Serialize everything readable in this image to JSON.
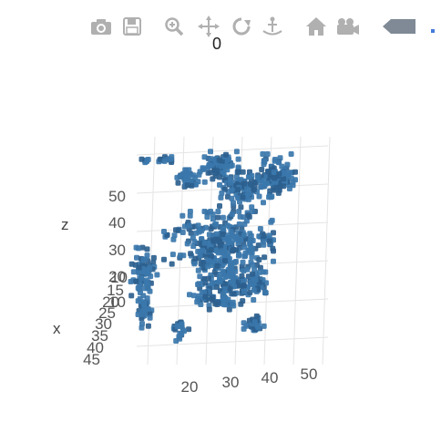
{
  "toolbar": {
    "items": [
      {
        "name": "camera-icon"
      },
      {
        "name": "save-icon"
      },
      {
        "name": "zoom-icon"
      },
      {
        "name": "pan-icon"
      },
      {
        "name": "orbit-rotate-icon"
      },
      {
        "name": "turntable-icon"
      },
      {
        "name": "home-icon"
      },
      {
        "name": "camera-view-icon"
      },
      {
        "name": "hover-compare-icon"
      }
    ]
  },
  "chart_data": {
    "type": "scatter",
    "title": "0",
    "marker_color": "#3b77ab",
    "marker_color_dark": "#2c5f8e",
    "axes": {
      "z": {
        "label": "z",
        "ticks": [
          "10",
          "20",
          "30",
          "40",
          "50"
        ]
      },
      "x": {
        "label": "x",
        "ticks": [
          "10",
          "15",
          "20",
          "25",
          "30",
          "35",
          "40",
          "45"
        ]
      },
      "y": {
        "label": "",
        "ticks": [
          "20",
          "30",
          "40",
          "50"
        ]
      }
    },
    "clusters": [
      {
        "cx": 160,
        "cy": 176,
        "rx": 4,
        "ry": 4,
        "n": 6
      },
      {
        "cx": 182,
        "cy": 176,
        "rx": 10,
        "ry": 4,
        "n": 14
      },
      {
        "cx": 205,
        "cy": 196,
        "rx": 12,
        "ry": 8,
        "n": 35
      },
      {
        "cx": 240,
        "cy": 183,
        "rx": 18,
        "ry": 14,
        "n": 90
      },
      {
        "cx": 265,
        "cy": 208,
        "rx": 20,
        "ry": 16,
        "n": 90
      },
      {
        "cx": 300,
        "cy": 193,
        "rx": 20,
        "ry": 20,
        "n": 110
      },
      {
        "cx": 240,
        "cy": 268,
        "rx": 50,
        "ry": 30,
        "n": 300
      },
      {
        "cx": 250,
        "cy": 310,
        "rx": 35,
        "ry": 20,
        "n": 140
      },
      {
        "cx": 243,
        "cy": 330,
        "rx": 15,
        "ry": 8,
        "n": 30
      },
      {
        "cx": 282,
        "cy": 310,
        "rx": 10,
        "ry": 12,
        "n": 30
      },
      {
        "cx": 158,
        "cy": 298,
        "rx": 12,
        "ry": 22,
        "n": 70
      },
      {
        "cx": 158,
        "cy": 338,
        "rx": 8,
        "ry": 18,
        "n": 40
      },
      {
        "cx": 198,
        "cy": 362,
        "rx": 8,
        "ry": 10,
        "n": 20
      },
      {
        "cx": 282,
        "cy": 356,
        "rx": 12,
        "ry": 10,
        "n": 28
      },
      {
        "cx": 220,
        "cy": 324,
        "rx": 6,
        "ry": 6,
        "n": 8
      },
      {
        "cx": 296,
        "cy": 268,
        "rx": 6,
        "ry": 8,
        "n": 10
      }
    ]
  }
}
